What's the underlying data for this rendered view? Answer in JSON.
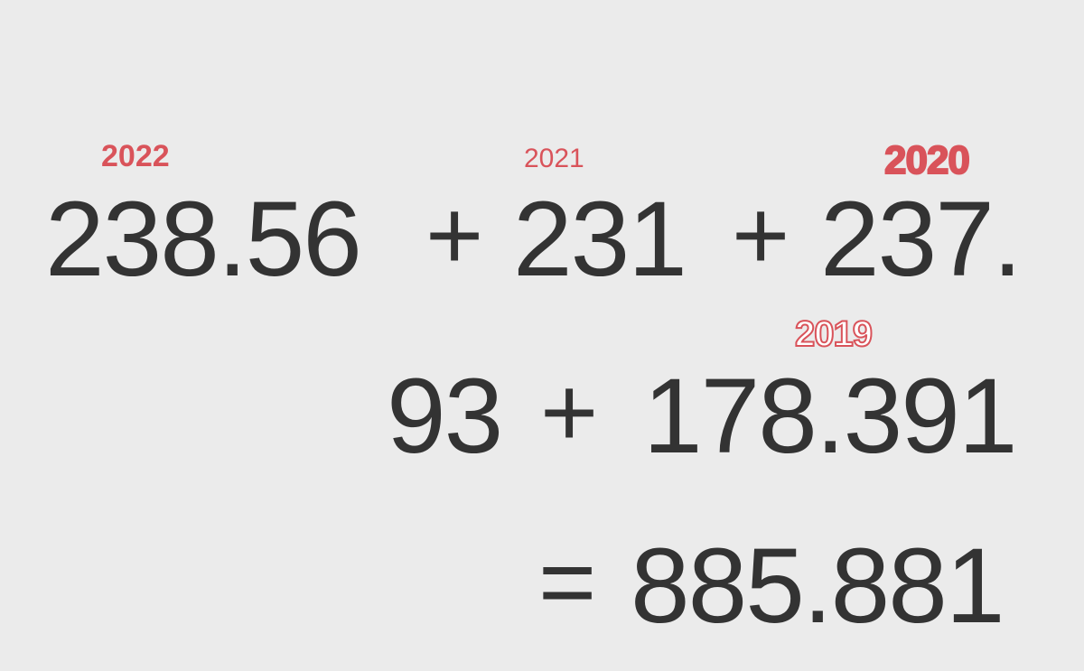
{
  "colors": {
    "background": "#ebebeb",
    "number": "#333333",
    "year": "#d9535a",
    "year_outline": "#d9535a"
  },
  "years": {
    "y2022": "2022",
    "y2021": "2021",
    "y2020": "2020",
    "y2019": "2019"
  },
  "equation": {
    "term1": "238.56",
    "plus1": "+",
    "term2": "231",
    "plus2": "+",
    "term3_part1": "237.",
    "term3_part2": "93",
    "plus3": "+",
    "term4": "178.391",
    "equals": "=",
    "result": "885.881"
  }
}
